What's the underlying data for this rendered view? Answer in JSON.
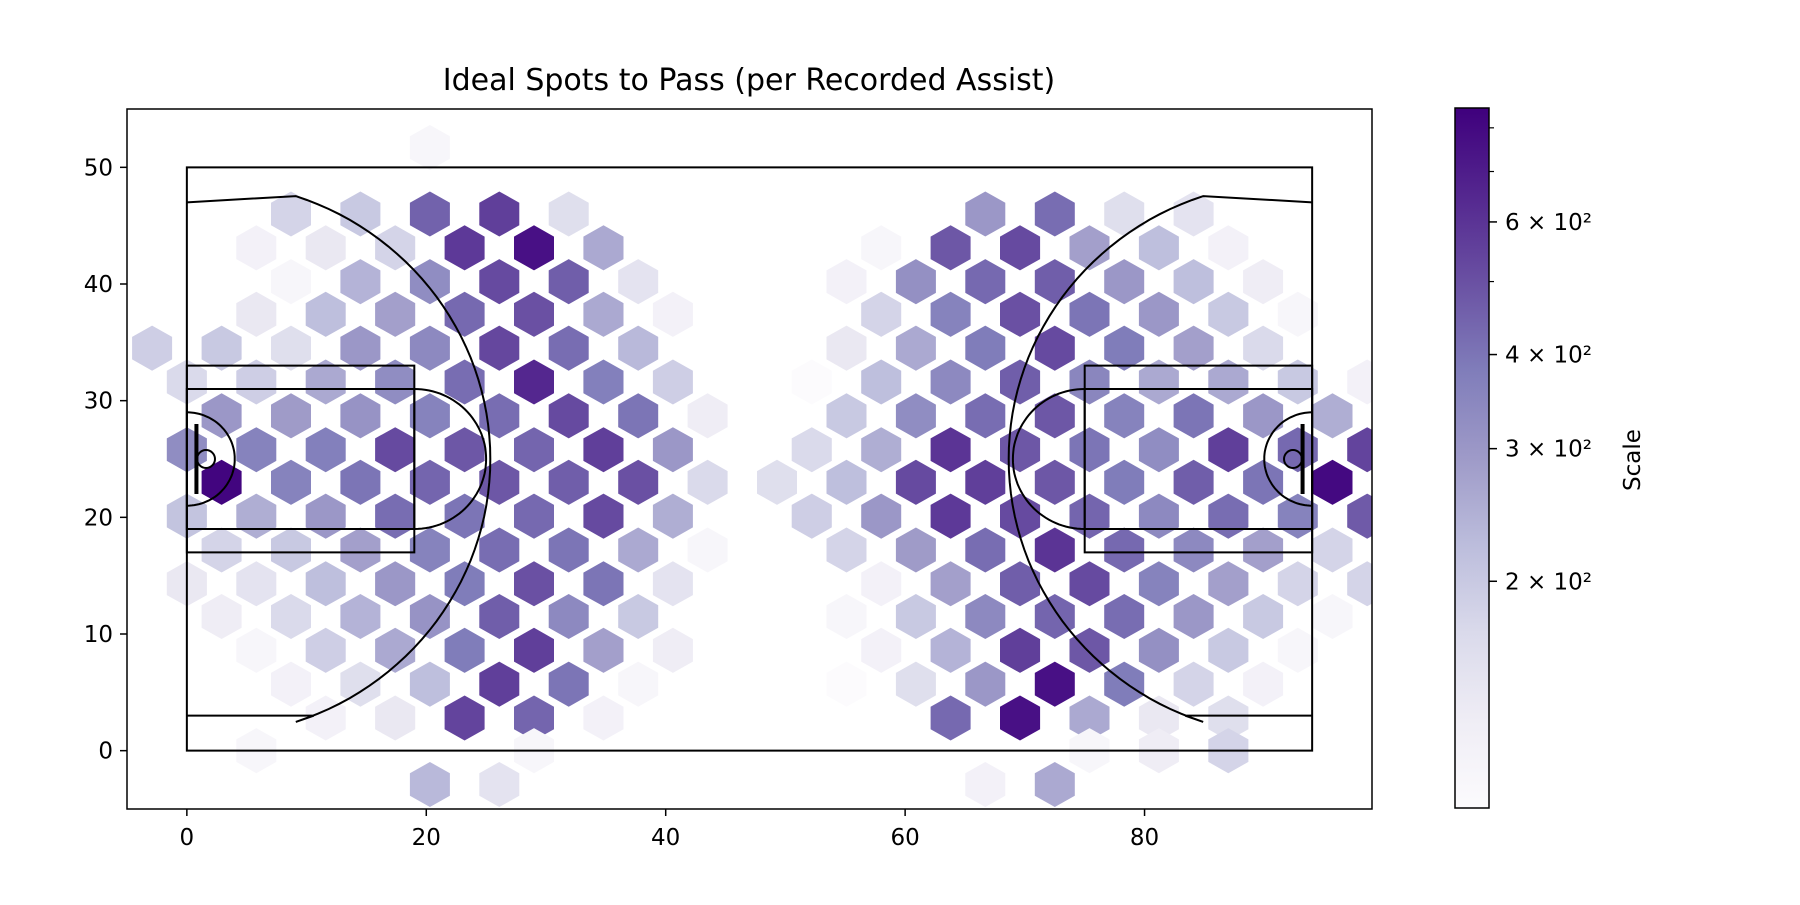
{
  "chart_data": {
    "type": "heatmap",
    "subtype": "hexbin",
    "title": "Ideal Spots to Pass (per Recorded Assist)",
    "xlabel": "",
    "ylabel": "",
    "xlim": [
      -5,
      99
    ],
    "ylim": [
      -5,
      55
    ],
    "x_ticks": [
      0,
      20,
      40,
      60,
      80
    ],
    "y_ticks": [
      0,
      10,
      20,
      30,
      40,
      50
    ],
    "colormap": "Purples",
    "color_scale": "log",
    "colorbar": {
      "label": "Scale",
      "min": 100,
      "max": 850,
      "tick_labels": [
        {
          "value": 200,
          "label": "2 × 10²"
        },
        {
          "value": 300,
          "label": "3 × 10²"
        },
        {
          "value": 400,
          "label": "4 × 10²"
        },
        {
          "value": 600,
          "label": "6 × 10²"
        }
      ],
      "minor_ticks": [
        500,
        700,
        800
      ]
    },
    "court": {
      "length": 94,
      "width": 50
    },
    "hex_cells": [
      [
        20.3,
        51.7,
        110
      ],
      [
        8.7,
        46.0,
        180
      ],
      [
        14.5,
        46.0,
        200
      ],
      [
        20.3,
        46.0,
        450
      ],
      [
        26.1,
        46.0,
        560
      ],
      [
        31.9,
        46.0,
        160
      ],
      [
        5.8,
        43.1,
        120
      ],
      [
        11.6,
        43.1,
        140
      ],
      [
        17.4,
        43.1,
        180
      ],
      [
        23.2,
        43.1,
        580
      ],
      [
        29.0,
        43.1,
        760
      ],
      [
        34.8,
        43.1,
        260
      ],
      [
        8.7,
        40.2,
        110
      ],
      [
        14.5,
        40.2,
        240
      ],
      [
        20.3,
        40.2,
        330
      ],
      [
        26.1,
        40.2,
        520
      ],
      [
        31.9,
        40.2,
        460
      ],
      [
        37.7,
        40.2,
        150
      ],
      [
        5.8,
        37.4,
        140
      ],
      [
        11.6,
        37.4,
        220
      ],
      [
        17.4,
        37.4,
        280
      ],
      [
        23.2,
        37.4,
        430
      ],
      [
        29.0,
        37.4,
        500
      ],
      [
        34.8,
        37.4,
        260
      ],
      [
        40.6,
        37.4,
        120
      ],
      [
        -2.9,
        34.5,
        190
      ],
      [
        2.9,
        34.5,
        200
      ],
      [
        8.7,
        34.5,
        160
      ],
      [
        14.5,
        34.5,
        300
      ],
      [
        20.3,
        34.5,
        340
      ],
      [
        26.1,
        34.5,
        530
      ],
      [
        31.9,
        34.5,
        420
      ],
      [
        37.7,
        34.5,
        230
      ],
      [
        0.0,
        31.6,
        170
      ],
      [
        5.8,
        31.6,
        190
      ],
      [
        11.6,
        31.6,
        260
      ],
      [
        17.4,
        31.6,
        330
      ],
      [
        23.2,
        31.6,
        420
      ],
      [
        29.0,
        31.6,
        650
      ],
      [
        34.8,
        31.6,
        370
      ],
      [
        40.6,
        31.6,
        190
      ],
      [
        2.9,
        28.7,
        300
      ],
      [
        8.7,
        28.7,
        290
      ],
      [
        14.5,
        28.7,
        310
      ],
      [
        20.3,
        28.7,
        360
      ],
      [
        26.1,
        28.7,
        420
      ],
      [
        31.9,
        28.7,
        520
      ],
      [
        37.7,
        28.7,
        400
      ],
      [
        43.5,
        28.7,
        130
      ],
      [
        0.0,
        25.8,
        330
      ],
      [
        5.8,
        25.8,
        360
      ],
      [
        11.6,
        25.8,
        370
      ],
      [
        17.4,
        25.8,
        520
      ],
      [
        23.2,
        25.8,
        480
      ],
      [
        29.0,
        25.8,
        440
      ],
      [
        34.8,
        25.8,
        560
      ],
      [
        40.6,
        25.8,
        300
      ],
      [
        2.9,
        23.0,
        820
      ],
      [
        8.7,
        23.0,
        360
      ],
      [
        14.5,
        23.0,
        400
      ],
      [
        20.3,
        23.0,
        440
      ],
      [
        26.1,
        23.0,
        480
      ],
      [
        31.9,
        23.0,
        460
      ],
      [
        37.7,
        23.0,
        500
      ],
      [
        43.5,
        23.0,
        170
      ],
      [
        0.0,
        20.1,
        210
      ],
      [
        5.8,
        20.1,
        250
      ],
      [
        11.6,
        20.1,
        300
      ],
      [
        17.4,
        20.1,
        420
      ],
      [
        23.2,
        20.1,
        400
      ],
      [
        29.0,
        20.1,
        430
      ],
      [
        34.8,
        20.1,
        520
      ],
      [
        40.6,
        20.1,
        250
      ],
      [
        2.9,
        17.2,
        180
      ],
      [
        8.7,
        17.2,
        200
      ],
      [
        14.5,
        17.2,
        280
      ],
      [
        20.3,
        17.2,
        360
      ],
      [
        26.1,
        17.2,
        420
      ],
      [
        31.9,
        17.2,
        400
      ],
      [
        37.7,
        17.2,
        260
      ],
      [
        43.5,
        17.2,
        110
      ],
      [
        0.0,
        14.3,
        140
      ],
      [
        5.8,
        14.3,
        150
      ],
      [
        11.6,
        14.3,
        220
      ],
      [
        17.4,
        14.3,
        300
      ],
      [
        23.2,
        14.3,
        380
      ],
      [
        29.0,
        14.3,
        500
      ],
      [
        34.8,
        14.3,
        400
      ],
      [
        40.6,
        14.3,
        150
      ],
      [
        2.9,
        11.5,
        130
      ],
      [
        8.7,
        11.5,
        170
      ],
      [
        14.5,
        11.5,
        240
      ],
      [
        20.3,
        11.5,
        310
      ],
      [
        26.1,
        11.5,
        460
      ],
      [
        31.9,
        11.5,
        340
      ],
      [
        37.7,
        11.5,
        200
      ],
      [
        5.8,
        8.6,
        110
      ],
      [
        11.6,
        8.6,
        190
      ],
      [
        17.4,
        8.6,
        260
      ],
      [
        23.2,
        8.6,
        380
      ],
      [
        29.0,
        8.6,
        560
      ],
      [
        34.8,
        8.6,
        280
      ],
      [
        40.6,
        8.6,
        130
      ],
      [
        8.7,
        5.7,
        120
      ],
      [
        14.5,
        5.7,
        160
      ],
      [
        20.3,
        5.7,
        220
      ],
      [
        26.1,
        5.7,
        560
      ],
      [
        31.9,
        5.7,
        400
      ],
      [
        37.7,
        5.7,
        110
      ],
      [
        11.6,
        2.8,
        120
      ],
      [
        17.4,
        2.8,
        140
      ],
      [
        23.2,
        2.8,
        540
      ],
      [
        29.0,
        2.8,
        440
      ],
      [
        34.8,
        2.8,
        120
      ],
      [
        5.8,
        0.0,
        110
      ],
      [
        29.0,
        0.0,
        110
      ],
      [
        20.3,
        -2.9,
        230
      ],
      [
        26.1,
        -2.9,
        150
      ],
      [
        66.7,
        46.0,
        300
      ],
      [
        72.5,
        46.0,
        420
      ],
      [
        78.3,
        46.0,
        160
      ],
      [
        84.1,
        46.0,
        150
      ],
      [
        58.0,
        43.1,
        110
      ],
      [
        63.8,
        43.1,
        480
      ],
      [
        69.6,
        43.1,
        520
      ],
      [
        75.4,
        43.1,
        280
      ],
      [
        81.2,
        43.1,
        220
      ],
      [
        87.0,
        43.1,
        120
      ],
      [
        55.1,
        40.2,
        120
      ],
      [
        60.9,
        40.2,
        320
      ],
      [
        66.7,
        40.2,
        430
      ],
      [
        72.5,
        40.2,
        460
      ],
      [
        78.3,
        40.2,
        300
      ],
      [
        84.1,
        40.2,
        220
      ],
      [
        89.9,
        40.2,
        130
      ],
      [
        58.0,
        37.4,
        180
      ],
      [
        63.8,
        37.4,
        360
      ],
      [
        69.6,
        37.4,
        500
      ],
      [
        75.4,
        37.4,
        400
      ],
      [
        81.2,
        37.4,
        300
      ],
      [
        87.0,
        37.4,
        200
      ],
      [
        92.8,
        37.4,
        110
      ],
      [
        55.1,
        34.5,
        140
      ],
      [
        60.9,
        34.5,
        260
      ],
      [
        66.7,
        34.5,
        380
      ],
      [
        72.5,
        34.5,
        520
      ],
      [
        78.3,
        34.5,
        380
      ],
      [
        84.1,
        34.5,
        280
      ],
      [
        89.9,
        34.5,
        170
      ],
      [
        52.2,
        31.6,
        100
      ],
      [
        58.0,
        31.6,
        220
      ],
      [
        63.8,
        31.6,
        340
      ],
      [
        69.6,
        31.6,
        460
      ],
      [
        75.4,
        31.6,
        350
      ],
      [
        81.2,
        31.6,
        260
      ],
      [
        87.0,
        31.6,
        260
      ],
      [
        92.8,
        31.6,
        200
      ],
      [
        98.6,
        31.6,
        120
      ],
      [
        55.1,
        28.7,
        200
      ],
      [
        60.9,
        28.7,
        330
      ],
      [
        66.7,
        28.7,
        420
      ],
      [
        72.5,
        28.7,
        480
      ],
      [
        78.3,
        28.7,
        360
      ],
      [
        84.1,
        28.7,
        400
      ],
      [
        89.9,
        28.7,
        300
      ],
      [
        95.7,
        28.7,
        250
      ],
      [
        52.2,
        25.8,
        170
      ],
      [
        58.0,
        25.8,
        250
      ],
      [
        63.8,
        25.8,
        600
      ],
      [
        69.6,
        25.8,
        480
      ],
      [
        75.4,
        25.8,
        400
      ],
      [
        81.2,
        25.8,
        330
      ],
      [
        87.0,
        25.8,
        560
      ],
      [
        92.8,
        25.8,
        430
      ],
      [
        98.6,
        25.8,
        540
      ],
      [
        49.3,
        23.0,
        160
      ],
      [
        55.1,
        23.0,
        220
      ],
      [
        60.9,
        23.0,
        520
      ],
      [
        66.7,
        23.0,
        560
      ],
      [
        72.5,
        23.0,
        480
      ],
      [
        78.3,
        23.0,
        380
      ],
      [
        84.1,
        23.0,
        460
      ],
      [
        89.9,
        23.0,
        400
      ],
      [
        95.7,
        23.0,
        800
      ],
      [
        52.2,
        20.1,
        190
      ],
      [
        58.0,
        20.1,
        300
      ],
      [
        63.8,
        20.1,
        580
      ],
      [
        69.6,
        20.1,
        520
      ],
      [
        75.4,
        20.1,
        440
      ],
      [
        81.2,
        20.1,
        340
      ],
      [
        87.0,
        20.1,
        420
      ],
      [
        92.8,
        20.1,
        360
      ],
      [
        98.6,
        20.1,
        470
      ],
      [
        55.1,
        17.2,
        180
      ],
      [
        60.9,
        17.2,
        290
      ],
      [
        66.7,
        17.2,
        420
      ],
      [
        72.5,
        17.2,
        600
      ],
      [
        78.3,
        17.2,
        430
      ],
      [
        84.1,
        17.2,
        340
      ],
      [
        89.9,
        17.2,
        280
      ],
      [
        95.7,
        17.2,
        180
      ],
      [
        58.0,
        14.3,
        120
      ],
      [
        63.8,
        14.3,
        280
      ],
      [
        69.6,
        14.3,
        460
      ],
      [
        75.4,
        14.3,
        520
      ],
      [
        81.2,
        14.3,
        360
      ],
      [
        87.0,
        14.3,
        280
      ],
      [
        92.8,
        14.3,
        180
      ],
      [
        98.6,
        14.3,
        180
      ],
      [
        55.1,
        11.5,
        110
      ],
      [
        60.9,
        11.5,
        200
      ],
      [
        66.7,
        11.5,
        340
      ],
      [
        72.5,
        11.5,
        440
      ],
      [
        78.3,
        11.5,
        420
      ],
      [
        84.1,
        11.5,
        300
      ],
      [
        89.9,
        11.5,
        200
      ],
      [
        95.7,
        11.5,
        110
      ],
      [
        58.0,
        8.6,
        120
      ],
      [
        63.8,
        8.6,
        240
      ],
      [
        69.6,
        8.6,
        560
      ],
      [
        75.4,
        8.6,
        480
      ],
      [
        81.2,
        8.6,
        320
      ],
      [
        87.0,
        8.6,
        200
      ],
      [
        92.8,
        8.6,
        110
      ],
      [
        55.1,
        5.7,
        100
      ],
      [
        60.9,
        5.7,
        160
      ],
      [
        66.7,
        5.7,
        300
      ],
      [
        72.5,
        5.7,
        760
      ],
      [
        78.3,
        5.7,
        380
      ],
      [
        84.1,
        5.7,
        180
      ],
      [
        89.9,
        5.7,
        120
      ],
      [
        63.8,
        2.8,
        430
      ],
      [
        69.6,
        2.8,
        760
      ],
      [
        75.4,
        2.8,
        260
      ],
      [
        81.2,
        2.8,
        140
      ],
      [
        87.0,
        2.8,
        160
      ],
      [
        75.4,
        0.0,
        110
      ],
      [
        81.2,
        0.0,
        130
      ],
      [
        87.0,
        0.0,
        180
      ],
      [
        66.7,
        -2.9,
        120
      ],
      [
        72.5,
        -2.9,
        260
      ]
    ]
  }
}
